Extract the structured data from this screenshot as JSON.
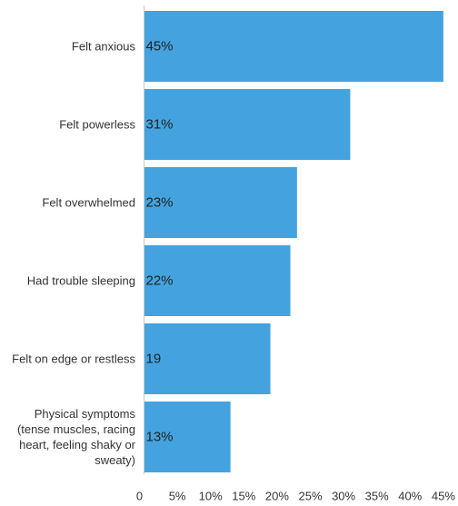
{
  "chart_data": {
    "type": "bar",
    "orientation": "horizontal",
    "categories": [
      [
        "Felt anxious"
      ],
      [
        "Felt powerless"
      ],
      [
        "Felt overwhelmed"
      ],
      [
        "Had trouble sleeping"
      ],
      [
        "Felt on edge or restless"
      ],
      [
        "Physical symptoms",
        "(tense muscles, racing",
        "heart, feeling shaky or",
        "sweaty)"
      ]
    ],
    "values": [
      45,
      31,
      23,
      22,
      19,
      13
    ],
    "data_labels": [
      "45%",
      "31%",
      "23%",
      "22%",
      "19",
      "13%"
    ],
    "xlim": [
      0,
      45
    ],
    "x_ticks": [
      0,
      5,
      10,
      15,
      20,
      25,
      30,
      35,
      40,
      45
    ],
    "x_tick_labels": [
      "0",
      "5%",
      "10%",
      "15%",
      "20%",
      "25%",
      "30%",
      "35%",
      "40%",
      "45%"
    ],
    "bar_color": "#44a3df",
    "axis_color": "#cccccc",
    "grid": false,
    "legend": "none"
  }
}
